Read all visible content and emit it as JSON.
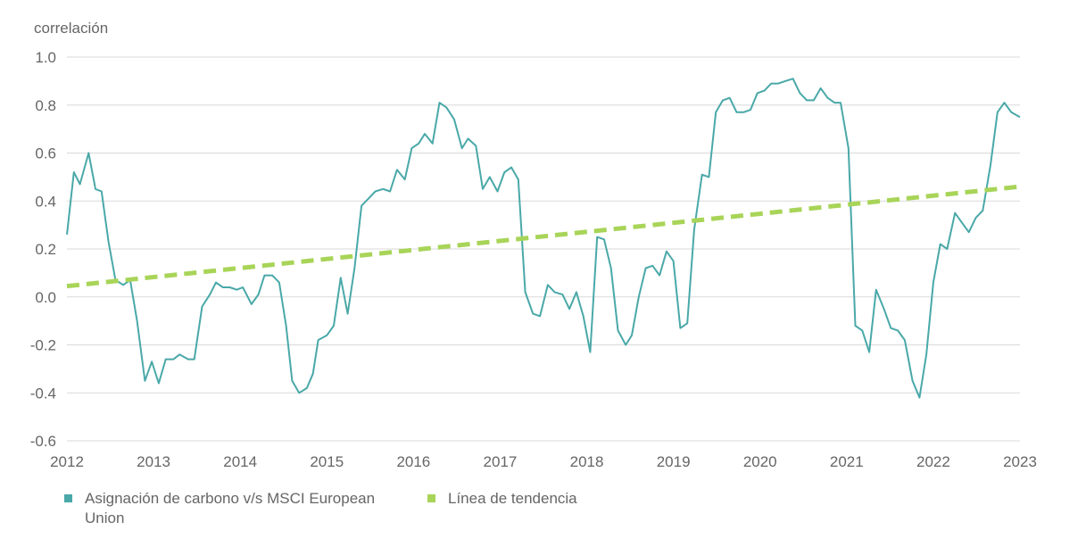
{
  "chart_data": {
    "type": "line",
    "ylabel": "correlación",
    "ylim": [
      -0.6,
      1.0
    ],
    "yticks": [
      1.0,
      0.8,
      0.6,
      0.4,
      0.2,
      0.0,
      -0.2,
      -0.4,
      -0.6
    ],
    "ytick_labels": [
      "1.0",
      "0.8",
      "0.6",
      "0.4",
      "0.2",
      "0.0",
      "-0.2",
      "-0.4",
      "-0.6"
    ],
    "xlim": [
      2012,
      2023
    ],
    "xtick_labels": [
      "2012",
      "2013",
      "2014",
      "2015",
      "2016",
      "2017",
      "2018",
      "2019",
      "2020",
      "2021",
      "2022",
      "2023"
    ],
    "grid": true,
    "series": [
      {
        "name": "Asignación de carbono v/s MSCI European Union",
        "color": "#4aa8a8",
        "style": "solid",
        "x": [
          2012.0,
          2012.08,
          2012.15,
          2012.25,
          2012.33,
          2012.4,
          2012.48,
          2012.56,
          2012.65,
          2012.73,
          2012.81,
          2012.9,
          2012.98,
          2013.06,
          2013.14,
          2013.23,
          2013.3,
          2013.4,
          2013.47,
          2013.56,
          2013.65,
          2013.72,
          2013.8,
          2013.88,
          2013.96,
          2014.03,
          2014.13,
          2014.21,
          2014.28,
          2014.37,
          2014.45,
          2014.53,
          2014.6,
          2014.68,
          2014.77,
          2014.84,
          2014.9,
          2015.0,
          2015.08,
          2015.16,
          2015.24,
          2015.32,
          2015.4,
          2015.48,
          2015.56,
          2015.65,
          2015.73,
          2015.81,
          2015.9,
          2015.98,
          2016.06,
          2016.13,
          2016.22,
          2016.3,
          2016.38,
          2016.47,
          2016.56,
          2016.63,
          2016.72,
          2016.8,
          2016.88,
          2016.97,
          2017.05,
          2017.13,
          2017.21,
          2017.29,
          2017.38,
          2017.46,
          2017.55,
          2017.63,
          2017.72,
          2017.8,
          2017.88,
          2017.96,
          2018.04,
          2018.12,
          2018.2,
          2018.28,
          2018.36,
          2018.45,
          2018.52,
          2018.6,
          2018.68,
          2018.76,
          2018.84,
          2018.92,
          2019.0,
          2019.08,
          2019.16,
          2019.24,
          2019.33,
          2019.41,
          2019.49,
          2019.57,
          2019.65,
          2019.73,
          2019.81,
          2019.89,
          2019.97,
          2020.05,
          2020.13,
          2020.21,
          2020.29,
          2020.38,
          2020.46,
          2020.54,
          2020.62,
          2020.7,
          2020.78,
          2020.86,
          2020.93,
          2021.02,
          2021.1,
          2021.18,
          2021.26,
          2021.34,
          2021.43,
          2021.51,
          2021.59,
          2021.67,
          2021.76,
          2021.84,
          2021.92,
          2022.0,
          2022.08,
          2022.16,
          2022.25,
          2022.33,
          2022.41,
          2022.49,
          2022.57,
          2022.66,
          2022.74,
          2022.82,
          2022.9,
          2023.0
        ],
        "y": [
          0.26,
          0.52,
          0.47,
          0.6,
          0.45,
          0.44,
          0.23,
          0.07,
          0.05,
          0.07,
          -0.1,
          -0.35,
          -0.27,
          -0.36,
          -0.26,
          -0.26,
          -0.24,
          -0.26,
          -0.26,
          -0.04,
          0.01,
          0.06,
          0.04,
          0.04,
          0.03,
          0.04,
          -0.03,
          0.01,
          0.09,
          0.09,
          0.06,
          -0.12,
          -0.35,
          -0.4,
          -0.38,
          -0.32,
          -0.18,
          -0.16,
          -0.12,
          0.08,
          -0.07,
          0.12,
          0.38,
          0.41,
          0.44,
          0.45,
          0.44,
          0.53,
          0.49,
          0.62,
          0.64,
          0.68,
          0.64,
          0.81,
          0.79,
          0.74,
          0.62,
          0.66,
          0.63,
          0.45,
          0.5,
          0.44,
          0.52,
          0.54,
          0.49,
          0.02,
          -0.07,
          -0.08,
          0.05,
          0.02,
          0.01,
          -0.05,
          0.02,
          -0.08,
          -0.23,
          0.25,
          0.24,
          0.12,
          -0.14,
          -0.2,
          -0.16,
          0.0,
          0.12,
          0.13,
          0.09,
          0.19,
          0.15,
          -0.13,
          -0.11,
          0.28,
          0.51,
          0.5,
          0.77,
          0.82,
          0.83,
          0.77,
          0.77,
          0.78,
          0.85,
          0.86,
          0.89,
          0.89,
          0.9,
          0.91,
          0.85,
          0.82,
          0.82,
          0.87,
          0.83,
          0.81,
          0.81,
          0.62,
          -0.12,
          -0.14,
          -0.23,
          0.03,
          -0.05,
          -0.13,
          -0.14,
          -0.18,
          -0.35,
          -0.42,
          -0.24,
          0.06,
          0.22,
          0.2,
          0.35,
          0.31,
          0.27,
          0.33,
          0.36,
          0.55,
          0.77,
          0.81,
          0.77,
          0.75
        ]
      },
      {
        "name": "Línea de tendencia",
        "color": "#a8d458",
        "style": "dashed",
        "x": [
          2012.0,
          2023.0
        ],
        "y": [
          0.045,
          0.46
        ]
      }
    ]
  }
}
